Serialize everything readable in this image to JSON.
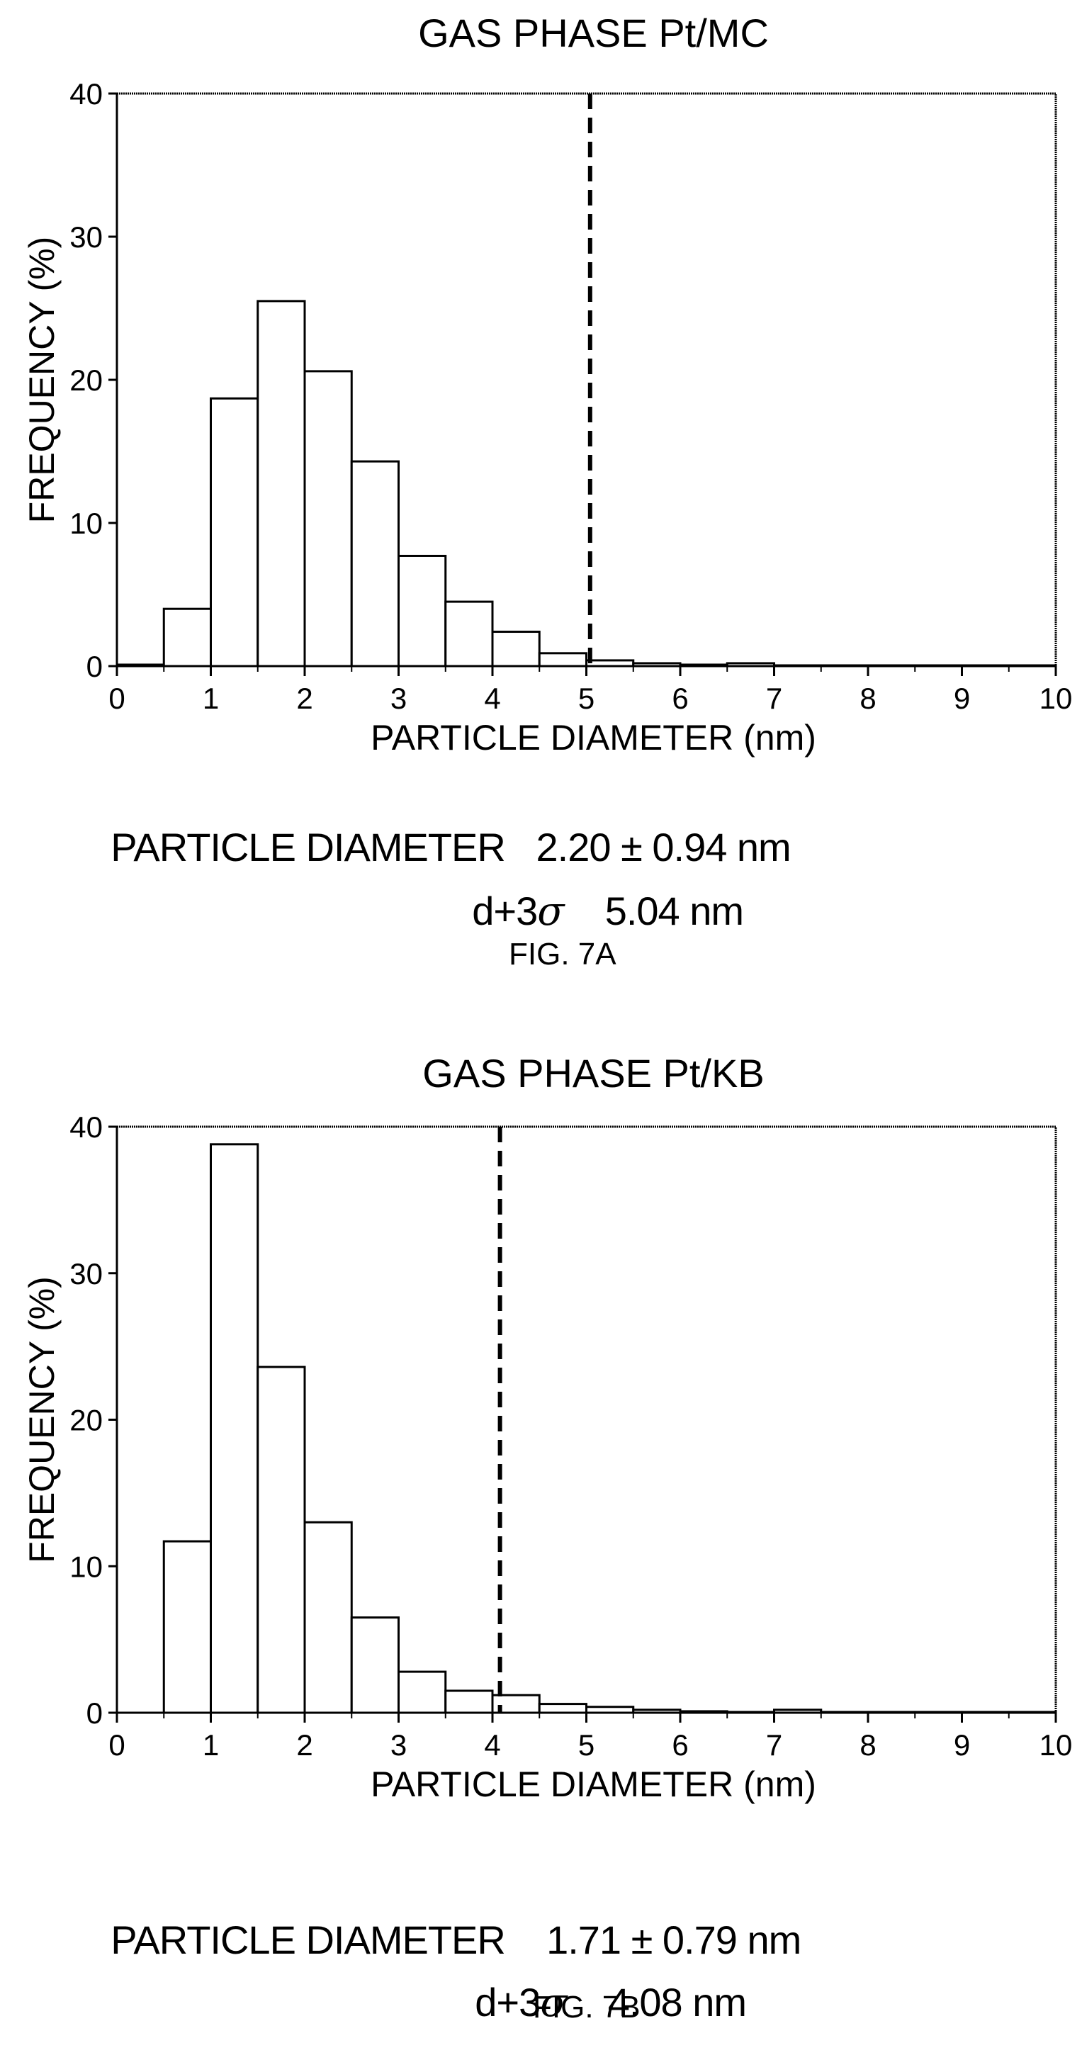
{
  "chart_data": [
    {
      "type": "bar",
      "title": "GAS PHASE Pt/MC",
      "xlabel": "PARTICLE DIAMETER (nm)",
      "ylabel": "FREQUENCY (%)",
      "xlim": [
        0,
        10
      ],
      "ylim": [
        0,
        40
      ],
      "xticks": [
        "0",
        "1",
        "2",
        "3",
        "4",
        "5",
        "6",
        "7",
        "8",
        "9",
        "10"
      ],
      "yticks": [
        "0",
        "10",
        "20",
        "30",
        "40"
      ],
      "bin_width": 0.5,
      "bins": [
        {
          "start": 0.0,
          "value": 0.1
        },
        {
          "start": 0.5,
          "value": 4.0
        },
        {
          "start": 1.0,
          "value": 18.7
        },
        {
          "start": 1.5,
          "value": 25.5
        },
        {
          "start": 2.0,
          "value": 20.6
        },
        {
          "start": 2.5,
          "value": 14.3
        },
        {
          "start": 3.0,
          "value": 7.7
        },
        {
          "start": 3.5,
          "value": 4.5
        },
        {
          "start": 4.0,
          "value": 2.4
        },
        {
          "start": 4.5,
          "value": 0.9
        },
        {
          "start": 5.0,
          "value": 0.4
        },
        {
          "start": 5.5,
          "value": 0.2
        },
        {
          "start": 6.0,
          "value": 0.1
        },
        {
          "start": 6.5,
          "value": 0.2
        },
        {
          "start": 7.0,
          "value": 0.05
        },
        {
          "start": 7.5,
          "value": 0.05
        },
        {
          "start": 8.0,
          "value": 0.05
        },
        {
          "start": 8.5,
          "value": 0.05
        },
        {
          "start": 9.0,
          "value": 0.05
        },
        {
          "start": 9.5,
          "value": 0.05
        }
      ],
      "reference_line": {
        "x": 5.04,
        "style": "dashed"
      },
      "grid": false
    },
    {
      "type": "bar",
      "title": "GAS PHASE Pt/KB",
      "xlabel": "PARTICLE DIAMETER (nm)",
      "ylabel": "FREQUENCY (%)",
      "xlim": [
        0,
        10
      ],
      "ylim": [
        0,
        40
      ],
      "xticks": [
        "0",
        "1",
        "2",
        "3",
        "4",
        "5",
        "6",
        "7",
        "8",
        "9",
        "10"
      ],
      "yticks": [
        "0",
        "10",
        "20",
        "30",
        "40"
      ],
      "bin_width": 0.5,
      "bins": [
        {
          "start": 0.5,
          "value": 11.7
        },
        {
          "start": 1.0,
          "value": 38.8
        },
        {
          "start": 1.5,
          "value": 23.6
        },
        {
          "start": 2.0,
          "value": 13.0
        },
        {
          "start": 2.5,
          "value": 6.5
        },
        {
          "start": 3.0,
          "value": 2.8
        },
        {
          "start": 3.5,
          "value": 1.5
        },
        {
          "start": 4.0,
          "value": 1.2
        },
        {
          "start": 4.5,
          "value": 0.6
        },
        {
          "start": 5.0,
          "value": 0.4
        },
        {
          "start": 5.5,
          "value": 0.2
        },
        {
          "start": 6.0,
          "value": 0.1
        },
        {
          "start": 6.5,
          "value": 0.05
        },
        {
          "start": 7.0,
          "value": 0.2
        },
        {
          "start": 7.5,
          "value": 0.05
        },
        {
          "start": 8.0,
          "value": 0.05
        },
        {
          "start": 8.5,
          "value": 0.05
        },
        {
          "start": 9.0,
          "value": 0.05
        },
        {
          "start": 9.5,
          "value": 0.05
        }
      ],
      "reference_line": {
        "x": 4.08,
        "style": "dashed"
      },
      "grid": false
    }
  ],
  "figures": [
    {
      "stat_label": "PARTICLE DIAMETER",
      "stat_value": "2.20 ± 0.94 nm",
      "sigma_label_prefix": "d+3",
      "sigma_symbol": "σ",
      "sigma_value": "5.04 nm",
      "caption": "FIG. 7A"
    },
    {
      "stat_label": "PARTICLE DIAMETER",
      "stat_value": "1.71 ± 0.79 nm",
      "sigma_label_prefix": "d+3",
      "sigma_symbol": "σ",
      "sigma_value": "4.08 nm",
      "caption": "FIG. 7B"
    }
  ]
}
